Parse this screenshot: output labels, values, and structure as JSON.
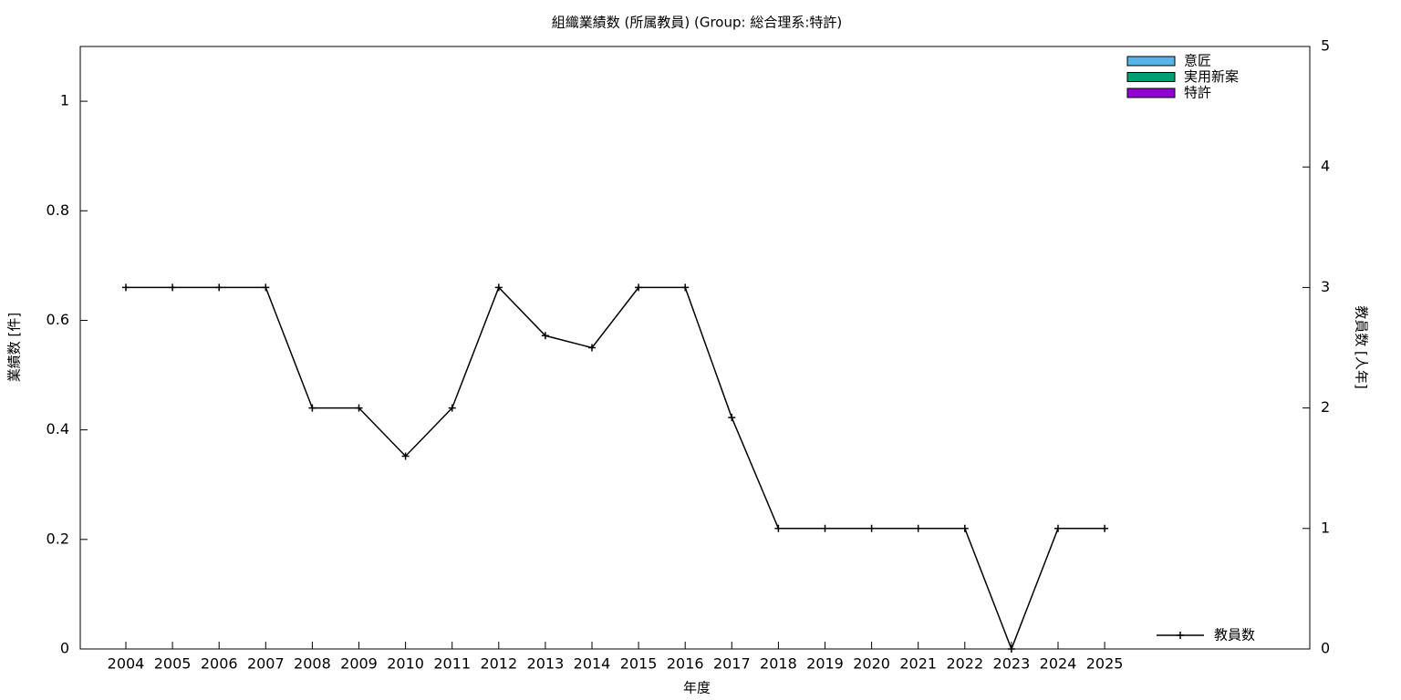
{
  "chart_data": {
    "type": "bar_line",
    "title": "組織業績数 (所属教員) (Group: 総合理系:特許)",
    "xlabel": "年度",
    "ylabel": "業績数 [件]",
    "y2label": "教員数 [人年]",
    "categories": [
      "2004",
      "2005",
      "2006",
      "2007",
      "2008",
      "2009",
      "2010",
      "2011",
      "2012",
      "2013",
      "2014",
      "2015",
      "2016",
      "2017",
      "2018",
      "2019",
      "2020",
      "2021",
      "2022",
      "2023",
      "2024",
      "2025"
    ],
    "ylim": [
      0,
      1.1
    ],
    "yticks": [
      0,
      0.2,
      0.4,
      0.6,
      0.8,
      1
    ],
    "y2lim": [
      0,
      5
    ],
    "y2ticks": [
      0,
      1,
      2,
      3,
      4,
      5
    ],
    "series": [
      {
        "name": "意匠",
        "type": "bar",
        "color": "#56b4e9",
        "values": [
          0,
          0,
          0,
          0,
          0,
          0,
          0,
          0,
          0,
          0,
          0,
          0,
          0,
          0,
          0,
          0,
          0,
          0,
          0,
          0,
          0,
          0
        ]
      },
      {
        "name": "実用新案",
        "type": "bar",
        "color": "#009e73",
        "values": [
          0,
          0,
          0,
          0,
          0,
          0,
          0,
          0,
          0,
          0,
          0,
          0,
          0,
          0,
          0,
          0,
          0,
          0,
          0,
          0,
          0,
          0
        ]
      },
      {
        "name": "特許",
        "type": "bar",
        "color": "#9400d3",
        "values": [
          0,
          0,
          0,
          0,
          0,
          0,
          0,
          0,
          0,
          0,
          0,
          0,
          0,
          0,
          0,
          0,
          0,
          0,
          0,
          0,
          0,
          0
        ]
      },
      {
        "name": "教員数",
        "type": "line",
        "axis": "y2",
        "color": "#000000",
        "values": [
          3,
          3,
          3,
          3,
          2,
          2,
          1.6,
          2,
          3,
          2.6,
          2.5,
          3,
          3,
          1.92,
          1,
          1,
          1,
          1,
          1,
          0,
          1,
          1
        ]
      }
    ]
  }
}
